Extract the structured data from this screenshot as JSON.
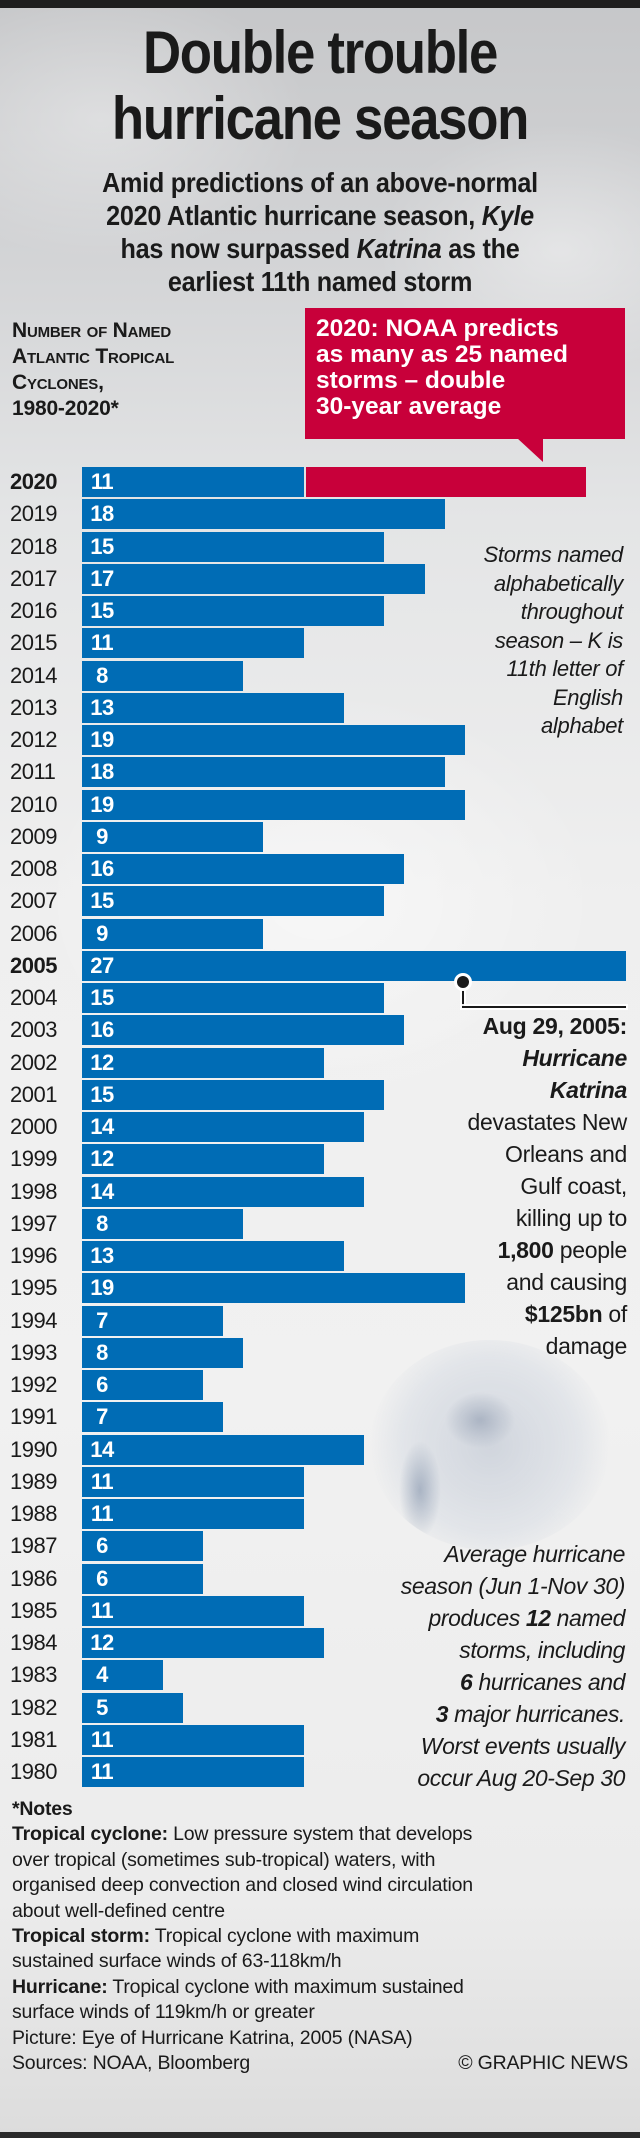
{
  "title": {
    "line1": "Double trouble",
    "line2": "hurricane season"
  },
  "subtitle": {
    "l1": "Amid predictions of an above-normal",
    "l2a": "2020 Atlantic hurricane season, ",
    "l2b": "Kyle",
    "l3a": "has now surpassed ",
    "l3b": "Katrina",
    "l3c": " as the",
    "l4": "earliest 11th named storm"
  },
  "chart_heading": {
    "l1": "Number of Named",
    "l2": "Atlantic Tropical",
    "l3": "Cyclones,",
    "l4": "1980-2020*"
  },
  "callout": {
    "l1": "2020: NOAA predicts",
    "l2": "as many as 25 named",
    "l3": "storms – double",
    "l4": "30-year average"
  },
  "colors": {
    "bar": "#006cb5",
    "prediction": "#c8003a",
    "text": "#1a1a1a"
  },
  "chart_data": {
    "type": "bar",
    "orientation": "horizontal",
    "title": "Number of Named Atlantic Tropical Cyclones, 1980-2020*",
    "categories": [
      "2020",
      "2019",
      "2018",
      "2017",
      "2016",
      "2015",
      "2014",
      "2013",
      "2012",
      "2011",
      "2010",
      "2009",
      "2008",
      "2007",
      "2006",
      "2005",
      "2004",
      "2003",
      "2002",
      "2001",
      "2000",
      "1999",
      "1998",
      "1997",
      "1996",
      "1995",
      "1994",
      "1993",
      "1992",
      "1991",
      "1990",
      "1989",
      "1988",
      "1987",
      "1986",
      "1985",
      "1984",
      "1983",
      "1982",
      "1981",
      "1980"
    ],
    "values": [
      11,
      18,
      15,
      17,
      15,
      11,
      8,
      13,
      19,
      18,
      19,
      9,
      16,
      15,
      9,
      27,
      15,
      16,
      12,
      15,
      14,
      12,
      14,
      8,
      13,
      19,
      7,
      8,
      6,
      7,
      14,
      11,
      11,
      6,
      6,
      11,
      12,
      4,
      5,
      11,
      11
    ],
    "highlighted": [
      "2020",
      "2005"
    ],
    "prediction": {
      "year": "2020",
      "value": 25,
      "label": "NOAA prediction"
    },
    "xlim": [
      0,
      27
    ],
    "grid": false
  },
  "annotations": {
    "storms_named": [
      "Storms named",
      "alphabetically",
      "throughout",
      "season – K is",
      "11th letter of",
      "English",
      "alphabet"
    ],
    "katrina": {
      "date": "Aug 29, 2005:",
      "name1": "Hurricane",
      "name2": "Katrina",
      "l1": "devastates New",
      "l2": "Orleans and",
      "l3": "Gulf coast,",
      "l4": "killing up to",
      "deaths": "1,800",
      "l5": " people",
      "l6": "and causing",
      "damage": "$125bn",
      "l7": " of",
      "l8": "damage"
    },
    "average": {
      "l1": "Average hurricane",
      "l2": "season (Jun 1-Nov 30)",
      "l3a": "produces ",
      "l3b": "12",
      "l3c": " named",
      "l4": "storms, including",
      "l5a": "6",
      "l5b": " hurricanes and",
      "l6a": "3",
      "l6b": " major hurricanes.",
      "l7": "Worst events usually",
      "l8": "occur Aug 20-Sep 30"
    }
  },
  "notes": {
    "title": "*Notes",
    "cyclone_term": "Tropical cyclone:",
    "cyclone_def1": " Low pressure system that develops",
    "cyclone_def2": "over tropical (sometimes sub-tropical) waters, with",
    "cyclone_def3": "organised deep convection and closed wind circulation",
    "cyclone_def4": "about well-defined centre",
    "storm_term": "Tropical storm:",
    "storm_def1": " Tropical cyclone with maximum",
    "storm_def2": "sustained surface winds of 63-118km/h",
    "hurricane_term": "Hurricane:",
    "hurricane_def1": " Tropical cyclone with maximum sustained",
    "hurricane_def2": "surface winds of 119km/h or greater",
    "picture": "Picture: Eye of Hurricane Katrina, 2005 (NASA)",
    "sources": "Sources: NOAA, Bloomberg",
    "credit": "© GRAPHIC NEWS"
  }
}
